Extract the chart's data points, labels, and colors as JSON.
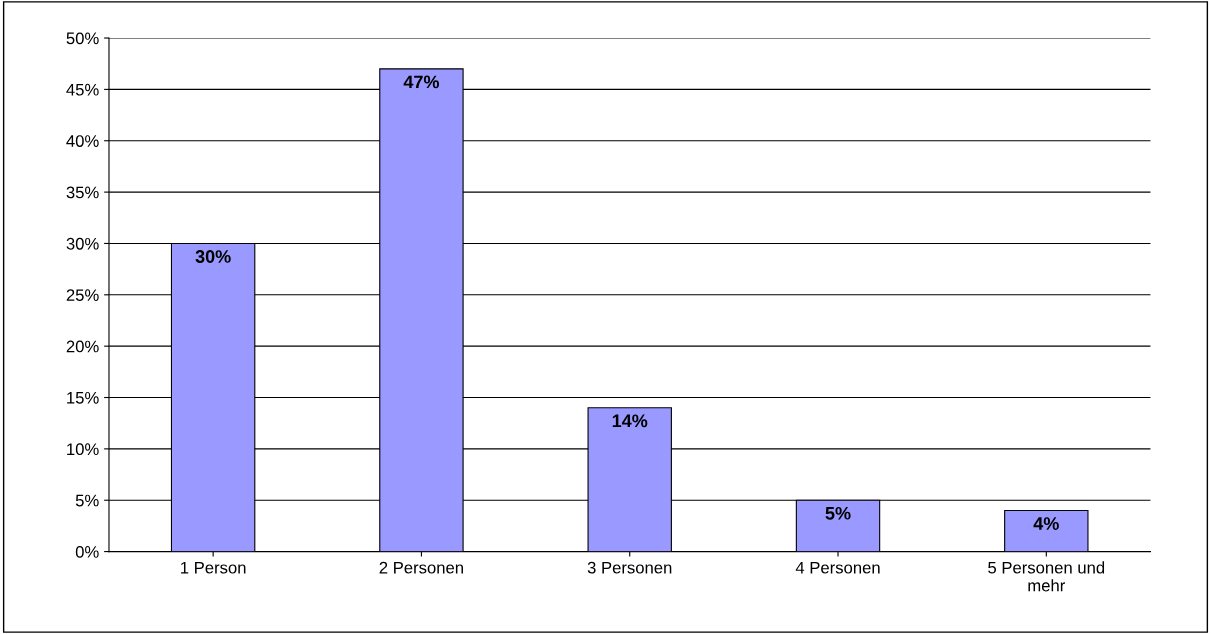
{
  "chart_data": {
    "type": "bar",
    "categories": [
      "1 Person",
      "2 Personen",
      "3 Personen",
      "4 Personen",
      "5 Personen und mehr"
    ],
    "values": [
      30,
      47,
      14,
      5,
      4
    ],
    "value_labels": [
      "30%",
      "47%",
      "14%",
      "5%",
      "4%"
    ],
    "color": "#9999ff",
    "ylim": [
      0,
      50
    ],
    "yticks": [
      {
        "value": 0,
        "label": "0%"
      },
      {
        "value": 5,
        "label": "5%"
      },
      {
        "value": 10,
        "label": "10%"
      },
      {
        "value": 15,
        "label": "15%"
      },
      {
        "value": 20,
        "label": "20%"
      },
      {
        "value": 25,
        "label": "25%"
      },
      {
        "value": 30,
        "label": "30%"
      },
      {
        "value": 35,
        "label": "35%"
      },
      {
        "value": 40,
        "label": "40%"
      },
      {
        "value": 45,
        "label": "45%"
      },
      {
        "value": 50,
        "label": "50%"
      }
    ],
    "grid": "y",
    "legend": false
  }
}
